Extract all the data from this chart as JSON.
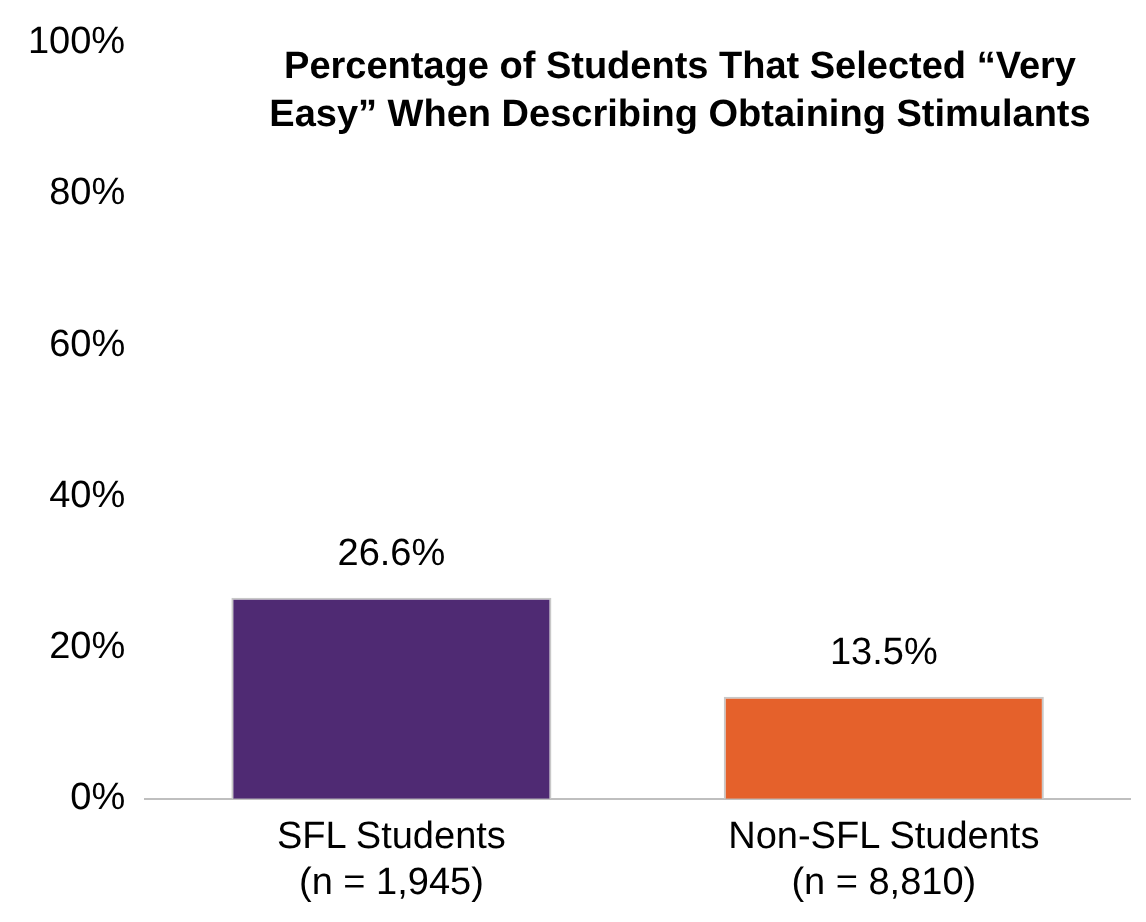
{
  "chart_data": {
    "type": "bar",
    "title": "Percentage of Students That Selected “Very Easy” When Describing Obtaining Stimulants",
    "categories": [
      "SFL Students\n(n = 1,945)",
      "Non-SFL Students\n(n = 8,810)"
    ],
    "values": [
      26.6,
      13.5
    ],
    "colors": [
      "#4f2a73",
      "#e5612b"
    ],
    "value_labels": [
      "26.6%",
      "13.5%"
    ],
    "ylim": [
      0,
      100
    ],
    "yticks": [
      {
        "value": 0,
        "label": "0%"
      },
      {
        "value": 20,
        "label": "20%"
      },
      {
        "value": 40,
        "label": "40%"
      },
      {
        "value": 60,
        "label": "60%"
      },
      {
        "value": 80,
        "label": "80%"
      },
      {
        "value": 100,
        "label": "100%"
      }
    ],
    "grid": false,
    "legend": false
  }
}
